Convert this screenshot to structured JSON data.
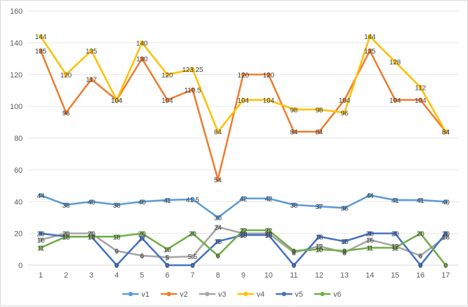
{
  "chart_data": {
    "type": "line",
    "categories": [
      "1",
      "2",
      "3",
      "4",
      "5",
      "6",
      "7",
      "8",
      "9",
      "10",
      "11",
      "12",
      "13",
      "14",
      "15",
      "16",
      "17"
    ],
    "ylim": [
      0,
      160
    ],
    "yticks": [
      0,
      20,
      40,
      60,
      80,
      100,
      120,
      140,
      160
    ],
    "grid": true,
    "legend": "bottom",
    "series": [
      {
        "name": "v1",
        "color": "#5b9bd5",
        "values": [
          44,
          38,
          40,
          38,
          40,
          41,
          41.5,
          30,
          42,
          42,
          38,
          37,
          36,
          44,
          41,
          41,
          40
        ]
      },
      {
        "name": "v2",
        "color": "#ed7d31",
        "values": [
          135,
          96,
          117,
          104,
          130,
          104,
          110.5,
          54,
          120,
          120,
          84,
          84,
          104,
          135,
          104,
          104,
          84
        ]
      },
      {
        "name": "v3",
        "color": "#a5a5a5",
        "values": [
          16,
          20,
          20,
          9,
          6,
          5,
          5.5,
          24,
          20,
          20,
          8,
          12,
          8,
          16,
          12,
          6,
          18
        ]
      },
      {
        "name": "v4",
        "color": "#ffc000",
        "values": [
          144,
          120,
          135,
          104,
          140,
          120,
          123.25,
          84,
          104,
          104,
          98,
          98,
          96,
          144,
          128,
          112,
          84
        ]
      },
      {
        "name": "v5",
        "color": "#4472c4",
        "values": [
          20,
          18,
          18,
          0,
          17,
          0,
          0,
          15,
          19,
          19,
          0,
          18,
          15,
          20,
          20,
          0,
          20
        ]
      },
      {
        "name": "v6",
        "color": "#70ad47",
        "values": [
          11,
          18,
          18,
          18,
          20,
          10,
          20,
          6,
          22,
          22,
          9,
          10,
          9,
          11,
          11,
          20,
          0
        ]
      }
    ],
    "data_labels": {
      "v1": [
        "44",
        "38",
        "40",
        "38",
        "40",
        "41",
        "41.5",
        "30",
        "42",
        "42",
        "38",
        "37",
        "36",
        "44",
        "41",
        "41",
        "40"
      ],
      "v2": [
        "135",
        "96",
        "117",
        "104",
        "130",
        "104",
        "110.5",
        "54",
        "120",
        "120",
        "84",
        "84",
        "104",
        "135",
        "104",
        "104",
        "84"
      ],
      "v3": [
        "16",
        "20",
        "20",
        "9",
        "6",
        "5",
        "5.5",
        "24",
        "20",
        "20",
        "8",
        "12",
        "8",
        "16",
        "12",
        "6",
        "18"
      ],
      "v4": [
        "144",
        "120",
        "135",
        "104",
        "140",
        "120",
        "123.25",
        "84",
        "104",
        "104",
        "98",
        "98",
        "96",
        "144",
        "128",
        "112",
        "84"
      ],
      "v5": [
        "20",
        "18",
        "18",
        "0",
        "17",
        "0",
        "0",
        "15",
        "19",
        "19",
        "0",
        "18",
        "15",
        "20",
        "20",
        "0",
        "20"
      ],
      "v6": [
        "11",
        "18",
        "18",
        "18",
        "20",
        "10",
        "20",
        "6",
        "22",
        "22",
        "9",
        "10",
        "9",
        "11",
        "11",
        "20",
        "0"
      ]
    }
  }
}
